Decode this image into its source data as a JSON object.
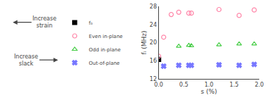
{
  "chart_data": {
    "type": "scatter",
    "xlabel": "s (%)",
    "ylabel": "fᵢ (MHz)",
    "annotations": [
      "Increase\nstrain",
      "Increase\nslack"
    ],
    "series": [
      {
        "name": "f₀",
        "color": "#000000",
        "marker": "square",
        "x": [
          0.0
        ],
        "values": [
          16.3
        ]
      },
      {
        "name": "Even in-plane",
        "color": "#ff88aa",
        "marker": "circle-open",
        "x": [
          0.0,
          0.1,
          0.25,
          0.4,
          0.6,
          0.65,
          1.2,
          1.6,
          1.9
        ],
        "values": [
          17.0,
          21.2,
          26.2,
          26.7,
          26.5,
          26.5,
          27.3,
          26.0,
          27.2
        ]
      },
      {
        "name": "Odd in-plane",
        "color": "#44cc44",
        "marker": "triangle-up-open",
        "x": [
          0.4,
          0.6,
          0.65,
          1.2,
          1.6,
          1.9
        ],
        "values": [
          19.2,
          19.4,
          19.3,
          19.5,
          19.7,
          19.7
        ]
      },
      {
        "name": "Out-of-plane",
        "color": "#7777ff",
        "marker": "x",
        "x": [
          0.1,
          0.4,
          0.6,
          0.65,
          1.2,
          1.6,
          1.9
        ],
        "values": [
          14.8,
          15.0,
          15.0,
          15.0,
          15.1,
          15.0,
          15.2
        ]
      }
    ],
    "xlim": [
      0,
      2.0
    ],
    "ylim": [
      12,
      28
    ],
    "xticks": [
      {
        "value": 0.0,
        "label": "0.0"
      },
      {
        "value": 0.5,
        "label": "0.5"
      },
      {
        "value": 1.0,
        "label": "1.0"
      },
      {
        "value": 1.5,
        "label": "1.5"
      },
      {
        "value": 2.0,
        "label": "2.0"
      }
    ],
    "yticks": [
      12,
      16,
      20,
      24,
      28
    ],
    "grid": false,
    "legend": "left"
  }
}
